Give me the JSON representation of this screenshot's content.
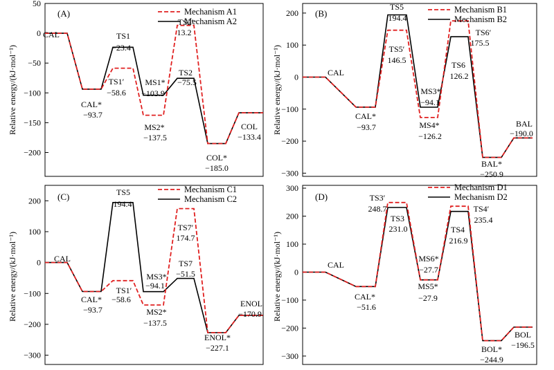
{
  "chart_data": [
    {
      "type": "line",
      "id": "A",
      "panel_label": "(A)",
      "ylabel": "Relative energy/(kJ·mol⁻¹)",
      "ylim": [
        -240,
        50
      ],
      "yticks": [
        50,
        0,
        -50,
        -100,
        -150,
        -200
      ],
      "ytick_labels": [
        "50",
        "0",
        "−50",
        "−100",
        "−150",
        "−200"
      ],
      "legend": [
        {
          "label": "Mechanism A1",
          "style": "dashed",
          "color": "#e02020"
        },
        {
          "label": "Mechanism A2",
          "style": "solid",
          "color": "#000000"
        }
      ],
      "series": [
        {
          "name": "Mechanism A1",
          "style": "dashed",
          "values": [
            0,
            -93.7,
            -58.6,
            -137.5,
            13.2,
            -185.0,
            -133.4
          ]
        },
        {
          "name": "Mechanism A2",
          "style": "solid",
          "values": [
            0,
            -93.7,
            -23.4,
            -103.9,
            -75.5,
            -185.0,
            -133.4
          ]
        }
      ],
      "annotations": [
        {
          "name": "CAL",
          "value": ""
        },
        {
          "name": "CAL*",
          "value": "−93.7"
        },
        {
          "name": "TS1",
          "value": "−23.4"
        },
        {
          "name": "TS1′",
          "value": "−58.6"
        },
        {
          "name": "MS1*",
          "value": "−103.9"
        },
        {
          "name": "MS2*",
          "value": "−137.5"
        },
        {
          "name": "TS2′",
          "value": "13.2"
        },
        {
          "name": "TS2",
          "value": "−75.5"
        },
        {
          "name": "COL*",
          "value": "−185.0"
        },
        {
          "name": "COL",
          "value": "−133.4"
        }
      ]
    },
    {
      "type": "line",
      "id": "B",
      "panel_label": "(B)",
      "ylabel": "Relative energy/(kJ·mol⁻¹)",
      "ylim": [
        -310,
        230
      ],
      "yticks": [
        200,
        100,
        0,
        -100,
        -200,
        -300
      ],
      "ytick_labels": [
        "200",
        "100",
        "0",
        "−100",
        "−200",
        "−300"
      ],
      "legend": [
        {
          "label": "Mechanism B1",
          "style": "dashed",
          "color": "#e02020"
        },
        {
          "label": "Mechanism B2",
          "style": "solid",
          "color": "#000000"
        }
      ],
      "series": [
        {
          "name": "Mechanism B1",
          "style": "dashed",
          "values": [
            0,
            -93.7,
            146.5,
            -126.2,
            175.5,
            -250.9,
            -190.0
          ]
        },
        {
          "name": "Mechanism B2",
          "style": "solid",
          "values": [
            0,
            -93.7,
            194.4,
            -94.1,
            126.2,
            -250.9,
            -190.0
          ]
        }
      ],
      "annotations": [
        {
          "name": "CAL",
          "value": ""
        },
        {
          "name": "CAL*",
          "value": "−93.7"
        },
        {
          "name": "TS5",
          "value": "194.4"
        },
        {
          "name": "TS5′",
          "value": "146.5"
        },
        {
          "name": "MS3*",
          "value": "−94.1"
        },
        {
          "name": "MS4*",
          "value": "−126.2"
        },
        {
          "name": "TS6′",
          "value": "175.5"
        },
        {
          "name": "TS6",
          "value": "126.2"
        },
        {
          "name": "BAL*",
          "value": "−250.9"
        },
        {
          "name": "BAL",
          "value": "−190.0"
        }
      ]
    },
    {
      "type": "line",
      "id": "C",
      "panel_label": "(C)",
      "ylabel": "Relative energy/(kJ·mol⁻¹)",
      "ylim": [
        -330,
        250
      ],
      "yticks": [
        200,
        100,
        0,
        -100,
        -200,
        -300
      ],
      "ytick_labels": [
        "200",
        "100",
        "0",
        "−100",
        "−200",
        "−300"
      ],
      "legend": [
        {
          "label": "Mechanism C1",
          "style": "dashed",
          "color": "#e02020"
        },
        {
          "label": "Mechanism C2",
          "style": "solid",
          "color": "#000000"
        }
      ],
      "series": [
        {
          "name": "Mechanism C1",
          "style": "dashed",
          "values": [
            0,
            -93.7,
            -58.6,
            -137.5,
            174.7,
            -227.1,
            -170.9
          ]
        },
        {
          "name": "Mechanism C2",
          "style": "solid",
          "values": [
            0,
            -93.7,
            194.4,
            -94.1,
            -51.5,
            -227.1,
            -170.9
          ]
        }
      ],
      "annotations": [
        {
          "name": "CAL",
          "value": ""
        },
        {
          "name": "CAL*",
          "value": "−93.7"
        },
        {
          "name": "TS5",
          "value": "194.4"
        },
        {
          "name": "TS1′",
          "value": "−58.6"
        },
        {
          "name": "MS3*",
          "value": "−94.1"
        },
        {
          "name": "MS2*",
          "value": "−137.5"
        },
        {
          "name": "TS7′",
          "value": "174.7"
        },
        {
          "name": "TS7",
          "value": "−51.5"
        },
        {
          "name": "ENOL*",
          "value": "−227.1"
        },
        {
          "name": "ENOL",
          "value": "−170.9"
        }
      ]
    },
    {
      "type": "line",
      "id": "D",
      "panel_label": "(D)",
      "ylabel": "Relative energy/(kJ·mol⁻¹)",
      "ylim": [
        -330,
        310
      ],
      "yticks": [
        300,
        200,
        100,
        0,
        -100,
        -200,
        -300
      ],
      "ytick_labels": [
        "300",
        "200",
        "100",
        "0",
        "−100",
        "−200",
        "−300"
      ],
      "legend": [
        {
          "label": "Mechanism D1",
          "style": "dashed",
          "color": "#e02020"
        },
        {
          "label": "Mechanism D2",
          "style": "solid",
          "color": "#000000"
        }
      ],
      "series": [
        {
          "name": "Mechanism D1",
          "style": "dashed",
          "values": [
            0,
            -51.6,
            248.7,
            -27.9,
            235.4,
            -244.9,
            -196.5
          ]
        },
        {
          "name": "Mechanism D2",
          "style": "solid",
          "values": [
            0,
            -51.6,
            231.0,
            -27.7,
            216.9,
            -244.9,
            -196.5
          ]
        }
      ],
      "annotations": [
        {
          "name": "CAL",
          "value": ""
        },
        {
          "name": "CAL*",
          "value": "−51.6"
        },
        {
          "name": "TS3′",
          "value": "248.7"
        },
        {
          "name": "TS3",
          "value": "231.0"
        },
        {
          "name": "MS6*",
          "value": "−27.7"
        },
        {
          "name": "MS5*",
          "value": "−27.9"
        },
        {
          "name": "TS4′",
          "value": "235.4"
        },
        {
          "name": "TS4",
          "value": "216.9"
        },
        {
          "name": "BOL*",
          "value": "−244.9"
        },
        {
          "name": "BOL",
          "value": "−196.5"
        }
      ]
    }
  ]
}
